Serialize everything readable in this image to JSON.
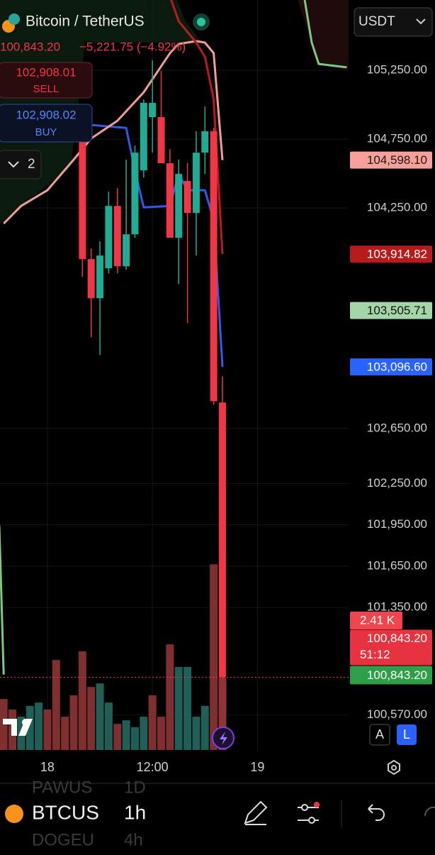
{
  "header": {
    "symbol": "Bitcoin / TetherUS",
    "price": "100,843.20",
    "change": "−5,221.75 (−4.92%)",
    "currency": "USDT"
  },
  "order_panel": {
    "sell_price": "102,908.01",
    "sell": "SELL",
    "buy_price": "102,908.02",
    "buy": "BUY",
    "count": "2"
  },
  "chart_data": {
    "type": "candlestick",
    "up_color": "#22ab94",
    "down_color": "#f23645",
    "xlim": [
      -5.42,
      34.25
    ],
    "xticks": [
      {
        "value": 0,
        "label": "18"
      },
      {
        "value": 12,
        "label": "12:00"
      },
      {
        "value": 24,
        "label": "19"
      }
    ],
    "ylim": [
      100300,
      105760
    ],
    "yticks": [
      {
        "value": 105250,
        "label": "105,250.00"
      },
      {
        "value": 104750,
        "label": "104,750.00"
      },
      {
        "value": 104250,
        "label": "104,250.00"
      },
      {
        "value": 102650,
        "label": "102,650.00"
      },
      {
        "value": 102250,
        "label": "102,250.00"
      },
      {
        "value": 101950,
        "label": "101,950.00"
      },
      {
        "value": 101650,
        "label": "101,650.00"
      },
      {
        "value": 101350,
        "label": "101,350.00"
      },
      {
        "value": 100570,
        "label": "100,570.00"
      }
    ],
    "grid": true,
    "candles": {
      "x": [
        4,
        5,
        6,
        7,
        8,
        9,
        10,
        11,
        12,
        13,
        14,
        15,
        16,
        17,
        18,
        19,
        20
      ],
      "open": [
        104729,
        103879,
        103595,
        103812,
        104265,
        103827,
        104059,
        104523,
        104910,
        104910,
        104575,
        104034,
        104446,
        104214,
        104652,
        104807,
        102838
      ],
      "high": [
        104832,
        103956,
        104008,
        104369,
        104394,
        104601,
        104704,
        105039,
        105322,
        105245,
        104678,
        104601,
        104575,
        104807,
        104987,
        104832,
        103028
      ],
      "low": [
        103750,
        103312,
        103183,
        103776,
        103776,
        103802,
        104034,
        104472,
        104652,
        104575,
        104034,
        103698,
        103415,
        103905,
        104497,
        102822,
        100838
      ],
      "close": [
        103879,
        103595,
        103905,
        104265,
        103827,
        104059,
        104652,
        105013,
        105013,
        104575,
        104034,
        104497,
        104214,
        104652,
        104807,
        102848,
        100843.2
      ]
    },
    "volume": {
      "x": [
        -5,
        -4,
        -3,
        -2,
        -1,
        0,
        1,
        2,
        3,
        4,
        5,
        6,
        7,
        8,
        9,
        10,
        11,
        12,
        13,
        14,
        15,
        16,
        17,
        18,
        19,
        20
      ],
      "values": [
        1.7,
        1.35,
        1.11,
        1.47,
        1.58,
        1.35,
        3.0,
        1.11,
        1.82,
        3.29,
        2.1,
        2.22,
        1.58,
        0.87,
        0.99,
        0.76,
        1.11,
        1.82,
        1.11,
        3.52,
        2.77,
        2.77,
        1.11,
        1.47,
        6.19,
        2.41
      ],
      "colors": [
        "#7f2f2f",
        "#7f2f2f",
        "#1f5f58",
        "#1f5f58",
        "#1f5f58",
        "#7f2f2f",
        "#7f2f2f",
        "#7f2f2f",
        "#7f2f2f",
        "#7f2f2f",
        "#7f2f2f",
        "#1f5f58",
        "#1f5f58",
        "#7f2f2f",
        "#1f5f58",
        "#1f5f58",
        "#1f5f58",
        "#7f2f2f",
        "#7f2f2f",
        "#7f2f2f",
        "#1f5f58",
        "#1f5f58",
        "#1f5f58",
        "#1f5f58",
        "#7f2f2f",
        "#8e3434"
      ],
      "ylim": [
        0,
        25
      ],
      "last_label": "2.41 K"
    },
    "lines": [
      {
        "color": "#2f5bea",
        "x": [
          4,
          9,
          10,
          11,
          14,
          15,
          16,
          18,
          19,
          20
        ],
        "values": [
          104858,
          104832,
          104523,
          104255,
          104265,
          104497,
          104379,
          104379,
          104162,
          103096.6
        ]
      },
      {
        "color": "#f19c97",
        "x": [
          -5,
          -3,
          0,
          3,
          5,
          8,
          11,
          14,
          15,
          17,
          18,
          19,
          20
        ],
        "values": [
          104137,
          104265,
          104379,
          104601,
          104755,
          104884,
          105090,
          105374,
          105441,
          105461,
          105451,
          105374,
          104598.1
        ]
      },
      {
        "color": "#b71c1c",
        "x": [
          14,
          15,
          17,
          18,
          19,
          20
        ],
        "values": [
          105786,
          105606,
          105451,
          105348,
          105039,
          103914.82
        ]
      },
      {
        "color": "#7fc97f",
        "x": [
          -5.5,
          -5,
          null,
          29.4,
          30.2,
          31,
          34.2
        ],
        "values": [
          101946,
          100863,
          null,
          105760,
          105451,
          105296,
          105271
        ]
      }
    ],
    "price_labels": [
      {
        "value": 104598.1,
        "label": "104,598.10",
        "color": "#f7a09a",
        "text_color": "#1a1a1a"
      },
      {
        "value": 103914.82,
        "label": "103,914.82",
        "color": "#b71c1c",
        "text_color": "#ffffff"
      },
      {
        "value": 103505.71,
        "label": "103,505.71",
        "color": "#a5d6a7",
        "text_color": "#111111"
      },
      {
        "value": 103096.6,
        "label": "103,096.60",
        "color": "#2962ff",
        "text_color": "#ffffff"
      }
    ],
    "last_price": {
      "value": 100843.2,
      "label": "100,843.20",
      "countdown": "51:12",
      "close_label": "100,843.20"
    }
  },
  "scale_buttons": [
    "A",
    "L"
  ],
  "toolbar": {
    "prev_symbol": "PAWUS",
    "prev_interval": "1D",
    "symbol": "BTCUS",
    "interval": "1h",
    "next_symbol": "DOGEU",
    "next_interval": "4h"
  }
}
